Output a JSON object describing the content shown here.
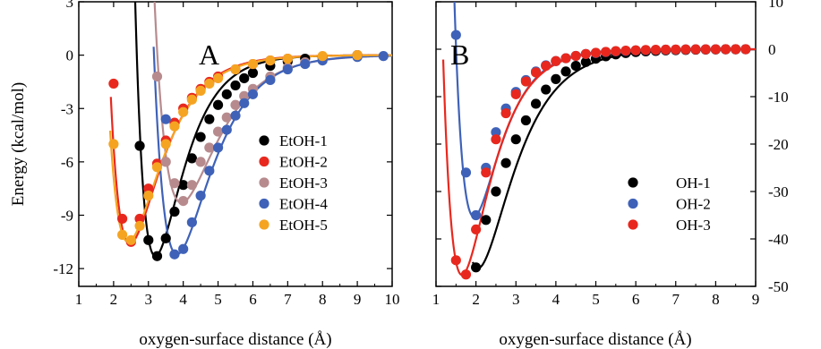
{
  "colors": {
    "black": "#000000",
    "red": "#e8281e",
    "mauve": "#b78b8e",
    "blue": "#3f62b8",
    "orange": "#f5a422"
  },
  "chart_data": [
    {
      "type": "scatter",
      "panel_label": "A",
      "xlabel": "oxygen-surface distance  (Å)",
      "ylabel": "Energy  (kcal/mol)",
      "xlim": [
        1,
        10
      ],
      "ylim": [
        -13,
        3
      ],
      "x_ticks": [
        "1",
        "2",
        "3",
        "4",
        "5",
        "6",
        "7",
        "8",
        "9",
        "10"
      ],
      "y_ticks": [
        "3",
        "0",
        "-3",
        "-6",
        "-9",
        "-12"
      ],
      "y_tick_values": [
        3,
        0,
        -3,
        -6,
        -9,
        -12
      ],
      "legend_position": "center-right",
      "fitted_curves": true,
      "series": [
        {
          "name": "EtOH-1",
          "color": "black",
          "x": [
            2.75,
            3.0,
            3.25,
            3.5,
            3.75,
            4.0,
            4.25,
            4.5,
            4.75,
            5.0,
            5.25,
            5.5,
            5.75,
            6.0,
            6.5,
            7.0,
            7.5,
            8.0,
            9.0
          ],
          "y": [
            -5.1,
            -10.4,
            -11.3,
            -10.3,
            -8.8,
            -7.3,
            -5.8,
            -4.6,
            -3.6,
            -2.8,
            -2.2,
            -1.7,
            -1.3,
            -1.0,
            -0.6,
            -0.35,
            -0.2,
            -0.1,
            0.0
          ],
          "fit": {
            "r0": 3.2,
            "depth": 11.3,
            "a": 1.3,
            "x_from": 2.6
          }
        },
        {
          "name": "EtOH-2",
          "color": "red",
          "x": [
            2.0,
            2.25,
            2.5,
            2.75,
            3.0,
            3.25,
            3.5,
            3.75,
            4.0,
            4.25,
            4.5,
            4.75,
            5.0,
            5.5,
            6.0,
            6.5,
            7.0,
            8.0,
            9.0
          ],
          "y": [
            -1.6,
            -9.2,
            -10.5,
            -9.2,
            -7.5,
            -6.1,
            -4.8,
            -3.8,
            -3.0,
            -2.4,
            -1.9,
            -1.5,
            -1.2,
            -0.8,
            -0.5,
            -0.3,
            -0.2,
            -0.1,
            0.0
          ],
          "fit": {
            "r0": 2.47,
            "depth": 10.6,
            "a": 1.15,
            "x_from": 1.92
          }
        },
        {
          "name": "EtOH-3",
          "color": "mauve",
          "x": [
            3.25,
            3.5,
            3.75,
            4.0,
            4.25,
            4.5,
            4.75,
            5.0,
            5.25,
            5.5,
            5.75,
            6.0,
            6.5,
            7.0,
            7.5,
            8.0,
            9.0
          ],
          "y": [
            -1.2,
            -6.0,
            -7.2,
            -8.2,
            -7.3,
            -6.0,
            -5.2,
            -4.3,
            -3.5,
            -2.8,
            -2.3,
            -1.9,
            -1.2,
            -0.7,
            -0.4,
            -0.2,
            0.0
          ],
          "fit": {
            "r0": 3.95,
            "depth": 8.3,
            "a": 1.0,
            "x_from": 3.05
          }
        },
        {
          "name": "EtOH-4",
          "color": "blue",
          "x": [
            3.5,
            3.75,
            4.0,
            4.25,
            4.5,
            4.75,
            5.0,
            5.25,
            5.5,
            5.75,
            6.0,
            6.5,
            7.0,
            7.5,
            8.0,
            9.0,
            9.75
          ],
          "y": [
            -3.6,
            -11.2,
            -10.9,
            -9.4,
            -7.9,
            -6.5,
            -5.2,
            -4.2,
            -3.4,
            -2.7,
            -2.2,
            -1.4,
            -0.8,
            -0.5,
            -0.3,
            -0.1,
            -0.05
          ],
          "fit": {
            "r0": 3.82,
            "depth": 11.2,
            "a": 1.05,
            "x_from": 3.15
          }
        },
        {
          "name": "EtOH-5",
          "color": "orange",
          "x": [
            2.0,
            2.25,
            2.5,
            2.75,
            3.0,
            3.25,
            3.5,
            3.75,
            4.0,
            4.25,
            4.5,
            4.75,
            5.0,
            5.5,
            6.0,
            6.5,
            7.0,
            8.0,
            9.0
          ],
          "y": [
            -5.0,
            -10.1,
            -10.4,
            -9.6,
            -7.9,
            -6.3,
            -5.0,
            -4.0,
            -3.2,
            -2.5,
            -2.0,
            -1.6,
            -1.3,
            -0.8,
            -0.5,
            -0.3,
            -0.2,
            -0.05,
            0.0
          ],
          "fit": {
            "r0": 2.42,
            "depth": 10.5,
            "a": 1.1,
            "x_from": 1.9
          }
        }
      ]
    },
    {
      "type": "scatter",
      "panel_label": "B",
      "xlabel": "oxygen-surface distance  (Å)",
      "ylabel": "",
      "xlim": [
        1,
        9
      ],
      "ylim": [
        -50,
        10
      ],
      "x_ticks": [
        "1",
        "2",
        "3",
        "4",
        "5",
        "6",
        "7",
        "8",
        "9"
      ],
      "y_ticks": [
        "10",
        "0",
        "-10",
        "-20",
        "-30",
        "-40",
        "-50"
      ],
      "y_tick_values": [
        10,
        0,
        -10,
        -20,
        -30,
        -40,
        -50
      ],
      "y_axis_side": "right",
      "legend_position": "bottom-right",
      "fitted_curves": true,
      "series": [
        {
          "name": "OH-1",
          "color": "black",
          "x": [
            2.0,
            2.25,
            2.5,
            2.75,
            3.0,
            3.25,
            3.5,
            3.75,
            4.0,
            4.25,
            4.5,
            4.75,
            5.0,
            5.25,
            5.5,
            5.75,
            6.0,
            6.25,
            6.5,
            6.75,
            7.0,
            7.25,
            7.5,
            7.75,
            8.0,
            8.25,
            8.5,
            8.75
          ],
          "y": [
            -46.0,
            -36.0,
            -30.0,
            -24.0,
            -19.0,
            -15.0,
            -11.5,
            -8.5,
            -6.3,
            -4.7,
            -3.5,
            -2.7,
            -2.0,
            -1.5,
            -1.1,
            -0.8,
            -0.6,
            -0.45,
            -0.35,
            -0.25,
            -0.2,
            -0.15,
            -0.1,
            -0.08,
            -0.05,
            -0.03,
            -0.02,
            -0.01
          ],
          "fit": {
            "r0": 2.05,
            "depth": 46.2,
            "a": 1.2,
            "x_from": 1.92
          }
        },
        {
          "name": "OH-2",
          "color": "blue",
          "x": [
            1.5,
            1.75,
            2.0,
            2.25,
            2.5,
            2.75,
            3.0,
            3.25,
            3.5,
            3.75,
            4.0,
            4.25,
            4.5,
            4.75,
            5.0,
            5.25,
            5.5,
            5.75,
            6.0,
            6.25,
            6.5,
            6.75,
            7.0,
            7.25,
            7.5,
            7.75,
            8.0,
            8.25,
            8.5,
            8.75
          ],
          "y": [
            3.0,
            -26.0,
            -35.0,
            -25.0,
            -17.5,
            -12.5,
            -9.0,
            -6.5,
            -4.7,
            -3.4,
            -2.5,
            -1.9,
            -1.4,
            -1.0,
            -0.8,
            -0.6,
            -0.45,
            -0.35,
            -0.25,
            -0.2,
            -0.15,
            -0.1,
            -0.08,
            -0.05,
            -0.03,
            -0.02,
            -0.01,
            0.0,
            0.0,
            0.0
          ],
          "fit": {
            "r0": 1.95,
            "depth": 35.3,
            "a": 1.55,
            "x_from": 1.45
          }
        },
        {
          "name": "OH-3",
          "color": "red",
          "x": [
            1.5,
            1.75,
            2.0,
            2.25,
            2.5,
            2.75,
            3.0,
            3.25,
            3.5,
            3.75,
            4.0,
            4.25,
            4.5,
            4.75,
            5.0,
            5.25,
            5.5,
            5.75,
            6.0,
            6.25,
            6.5,
            6.75,
            7.0,
            7.25,
            7.5,
            7.75,
            8.0,
            8.25,
            8.5,
            8.75
          ],
          "y": [
            -44.5,
            -47.5,
            -38.0,
            -26.0,
            -19.0,
            -13.5,
            -9.5,
            -6.8,
            -4.9,
            -3.5,
            -2.5,
            -1.9,
            -1.4,
            -1.0,
            -0.75,
            -0.55,
            -0.4,
            -0.3,
            -0.22,
            -0.16,
            -0.12,
            -0.09,
            -0.06,
            -0.04,
            -0.03,
            -0.02,
            -0.01,
            0.0,
            0.0,
            0.0
          ],
          "fit": {
            "r0": 1.65,
            "depth": 47.6,
            "a": 1.45,
            "x_from": 1.18
          }
        }
      ]
    }
  ]
}
